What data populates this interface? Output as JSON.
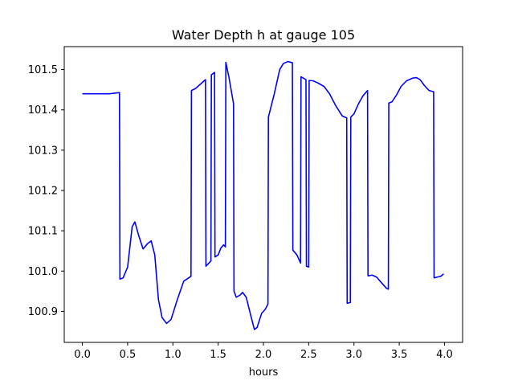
{
  "chart_data": {
    "type": "line",
    "title": "Water Depth h at gauge 105",
    "xlabel": "hours",
    "ylabel": "",
    "xlim": [
      -0.2,
      4.2
    ],
    "ylim": [
      100.823,
      101.557
    ],
    "grid": false,
    "x_ticks": [
      0.0,
      0.5,
      1.0,
      1.5,
      2.0,
      2.5,
      3.0,
      3.5,
      4.0
    ],
    "x_tick_labels": [
      "0.0",
      "0.5",
      "1.0",
      "1.5",
      "2.0",
      "2.5",
      "3.0",
      "3.5",
      "4.0"
    ],
    "y_ticks": [
      100.9,
      101.0,
      101.1,
      101.2,
      101.3,
      101.4,
      101.5
    ],
    "y_tick_labels": [
      "100.9",
      "101.0",
      "101.1",
      "101.2",
      "101.3",
      "101.4",
      "101.5"
    ],
    "series": [
      {
        "color": "#0000ff",
        "points": [
          [
            0.0,
            101.44
          ],
          [
            0.2,
            101.44
          ],
          [
            0.3,
            101.44
          ],
          [
            0.41,
            101.443
          ],
          [
            0.415,
            100.98
          ],
          [
            0.45,
            100.983
          ],
          [
            0.5,
            101.01
          ],
          [
            0.55,
            101.11
          ],
          [
            0.58,
            101.122
          ],
          [
            0.62,
            101.09
          ],
          [
            0.67,
            101.055
          ],
          [
            0.72,
            101.068
          ],
          [
            0.76,
            101.075
          ],
          [
            0.8,
            101.04
          ],
          [
            0.84,
            100.93
          ],
          [
            0.88,
            100.885
          ],
          [
            0.93,
            100.87
          ],
          [
            0.98,
            100.88
          ],
          [
            1.05,
            100.93
          ],
          [
            1.12,
            100.975
          ],
          [
            1.2,
            100.987
          ],
          [
            1.205,
            101.448
          ],
          [
            1.25,
            101.453
          ],
          [
            1.3,
            101.463
          ],
          [
            1.36,
            101.475
          ],
          [
            1.365,
            101.012
          ],
          [
            1.42,
            101.025
          ],
          [
            1.425,
            101.487
          ],
          [
            1.46,
            101.493
          ],
          [
            1.465,
            101.035
          ],
          [
            1.5,
            101.04
          ],
          [
            1.53,
            101.057
          ],
          [
            1.56,
            101.065
          ],
          [
            1.58,
            101.06
          ],
          [
            1.585,
            101.518
          ],
          [
            1.62,
            101.48
          ],
          [
            1.67,
            101.415
          ],
          [
            1.675,
            100.95
          ],
          [
            1.7,
            100.935
          ],
          [
            1.74,
            100.94
          ],
          [
            1.77,
            100.947
          ],
          [
            1.81,
            100.935
          ],
          [
            1.86,
            100.89
          ],
          [
            1.9,
            100.855
          ],
          [
            1.93,
            100.86
          ],
          [
            1.98,
            100.895
          ],
          [
            2.02,
            100.905
          ],
          [
            2.05,
            100.918
          ],
          [
            2.055,
            101.382
          ],
          [
            2.12,
            101.44
          ],
          [
            2.18,
            101.5
          ],
          [
            2.22,
            101.515
          ],
          [
            2.27,
            101.52
          ],
          [
            2.32,
            101.517
          ],
          [
            2.325,
            101.052
          ],
          [
            2.37,
            101.04
          ],
          [
            2.41,
            101.02
          ],
          [
            2.415,
            101.482
          ],
          [
            2.47,
            101.475
          ],
          [
            2.475,
            101.012
          ],
          [
            2.5,
            101.01
          ],
          [
            2.505,
            101.473
          ],
          [
            2.55,
            101.472
          ],
          [
            2.6,
            101.467
          ],
          [
            2.67,
            101.458
          ],
          [
            2.73,
            101.44
          ],
          [
            2.8,
            101.41
          ],
          [
            2.87,
            101.385
          ],
          [
            2.92,
            101.38
          ],
          [
            2.925,
            100.92
          ],
          [
            2.96,
            100.922
          ],
          [
            2.965,
            101.382
          ],
          [
            3.0,
            101.39
          ],
          [
            3.05,
            101.415
          ],
          [
            3.1,
            101.435
          ],
          [
            3.15,
            101.448
          ],
          [
            3.155,
            100.988
          ],
          [
            3.2,
            100.99
          ],
          [
            3.25,
            100.985
          ],
          [
            3.3,
            100.972
          ],
          [
            3.36,
            100.957
          ],
          [
            3.38,
            100.955
          ],
          [
            3.385,
            101.417
          ],
          [
            3.42,
            101.42
          ],
          [
            3.47,
            101.437
          ],
          [
            3.52,
            101.458
          ],
          [
            3.58,
            101.472
          ],
          [
            3.65,
            101.479
          ],
          [
            3.69,
            101.48
          ],
          [
            3.73,
            101.475
          ],
          [
            3.78,
            101.46
          ],
          [
            3.83,
            101.448
          ],
          [
            3.88,
            101.445
          ],
          [
            3.885,
            100.983
          ],
          [
            3.92,
            100.985
          ],
          [
            3.96,
            100.987
          ],
          [
            3.99,
            100.993
          ]
        ]
      }
    ]
  }
}
